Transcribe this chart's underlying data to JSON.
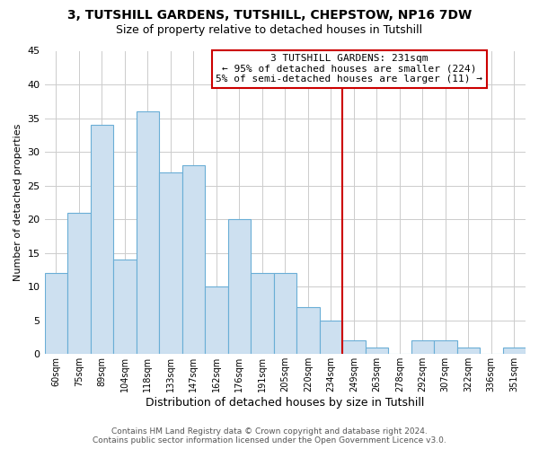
{
  "title": "3, TUTSHILL GARDENS, TUTSHILL, CHEPSTOW, NP16 7DW",
  "subtitle": "Size of property relative to detached houses in Tutshill",
  "xlabel": "Distribution of detached houses by size in Tutshill",
  "ylabel": "Number of detached properties",
  "bar_labels": [
    "60sqm",
    "75sqm",
    "89sqm",
    "104sqm",
    "118sqm",
    "133sqm",
    "147sqm",
    "162sqm",
    "176sqm",
    "191sqm",
    "205sqm",
    "220sqm",
    "234sqm",
    "249sqm",
    "263sqm",
    "278sqm",
    "292sqm",
    "307sqm",
    "322sqm",
    "336sqm",
    "351sqm"
  ],
  "bar_values": [
    12,
    21,
    34,
    14,
    36,
    27,
    28,
    10,
    20,
    12,
    12,
    7,
    5,
    2,
    1,
    0,
    2,
    2,
    1,
    0,
    1
  ],
  "bar_color": "#cde0f0",
  "bar_edge_color": "#6aaed6",
  "vline_color": "#cc0000",
  "ylim": [
    0,
    45
  ],
  "yticks": [
    0,
    5,
    10,
    15,
    20,
    25,
    30,
    35,
    40,
    45
  ],
  "annotation_title": "3 TUTSHILL GARDENS: 231sqm",
  "annotation_line1": "← 95% of detached houses are smaller (224)",
  "annotation_line2": "5% of semi-detached houses are larger (11) →",
  "annotation_box_color": "#ffffff",
  "annotation_box_edge": "#cc0000",
  "footer_line1": "Contains HM Land Registry data © Crown copyright and database right 2024.",
  "footer_line2": "Contains public sector information licensed under the Open Government Licence v3.0.",
  "background_color": "#ffffff",
  "grid_color": "#cccccc",
  "title_fontsize": 10,
  "subtitle_fontsize": 9
}
